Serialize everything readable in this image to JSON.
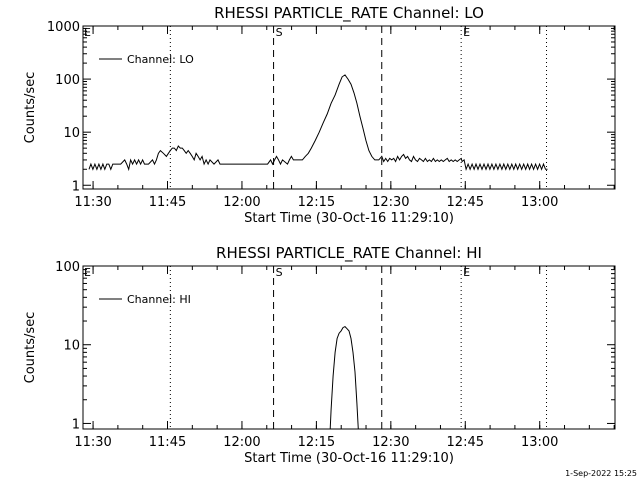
{
  "footer": {
    "timestamp": "1-Sep-2022 15:25"
  },
  "chart_data": [
    {
      "type": "line",
      "title": "RHESSI PARTICLE_RATE Channel: LO",
      "xlabel": "Start Time (30-Oct-16 11:29:10)",
      "ylabel": "Counts/sec",
      "yscale": "log",
      "xlim": [
        -1.2,
        106
      ],
      "ylim": [
        0.85,
        1000
      ],
      "x_tick_values": [
        0.83,
        15.83,
        30.83,
        45.83,
        60.83,
        75.83,
        90.83
      ],
      "x_tick_labels": [
        "11:30",
        "11:45",
        "12:00",
        "12:15",
        "12:30",
        "12:45",
        "13:00"
      ],
      "y_tick_values": [
        1,
        10,
        100,
        1000
      ],
      "y_tick_labels": [
        "1",
        "10",
        "100",
        "1000"
      ],
      "legend": {
        "label": "Channel: LO",
        "position": "top-left"
      },
      "markers": [
        {
          "x": 16.4,
          "style": "dotted",
          "label": ""
        },
        {
          "x": 37.2,
          "style": "dashed",
          "label": "S"
        },
        {
          "x": 59.0,
          "style": "dashed",
          "label": ""
        },
        {
          "x": 75.0,
          "style": "dotted",
          "label": "E"
        },
        {
          "x": 92.2,
          "style": "dotted",
          "label": ""
        }
      ],
      "edge_labels": [
        "E"
      ],
      "series": [
        {
          "name": "Channel: LO",
          "x": [
            0,
            0.4,
            0.8,
            1.2,
            1.6,
            2.0,
            2.4,
            2.8,
            3.2,
            3.6,
            4.0,
            4.4,
            4.8,
            5.2,
            5.6,
            6.4,
            7.2,
            7.6,
            8.0,
            8.4,
            8.8,
            9.2,
            9.6,
            10.0,
            10.4,
            10.8,
            11.2,
            12.0,
            12.8,
            13.2,
            13.6,
            14.0,
            14.4,
            15.0,
            15.6,
            16.0,
            16.4,
            16.8,
            17.2,
            17.6,
            18.0,
            18.4,
            18.8,
            19.2,
            19.6,
            20.0,
            20.4,
            20.8,
            21.2,
            21.6,
            22.0,
            22.4,
            22.8,
            23.2,
            23.6,
            24.0,
            24.4,
            25.2,
            26.0,
            26.4,
            26.8,
            27.2,
            28.0,
            28.8,
            29.6,
            30.4,
            31.2,
            32.0,
            32.8,
            33.6,
            34.4,
            35.2,
            36.0,
            36.6,
            37.0,
            37.4,
            37.8,
            38.2,
            38.6,
            39.0,
            40.0,
            40.4,
            40.8,
            41.2,
            42.0,
            43.0,
            43.6,
            44.2,
            44.8,
            45.6,
            46.4,
            47.2,
            48.0,
            48.8,
            49.6,
            50.4,
            51.0,
            51.6,
            52.2,
            52.8,
            53.4,
            54.0,
            54.6,
            55.2,
            55.8,
            56.4,
            57.0,
            57.6,
            58.4,
            59.0,
            59.4,
            59.8,
            60.2,
            60.6,
            61.0,
            61.4,
            61.8,
            62.2,
            62.6,
            63.0,
            63.4,
            63.8,
            64.2,
            64.6,
            65.0,
            65.4,
            65.8,
            66.2,
            66.6,
            67.0,
            67.4,
            67.8,
            68.2,
            68.6,
            69.0,
            69.4,
            69.8,
            70.2,
            70.6,
            71.0,
            71.4,
            71.8,
            72.2,
            72.6,
            73.0,
            73.4,
            73.8,
            74.2,
            74.6,
            75.0,
            75.2,
            75.6,
            76.0,
            76.4,
            76.8,
            77.2,
            77.6,
            78.0,
            78.4,
            78.8,
            79.2,
            79.6,
            80.0,
            80.4,
            80.8,
            81.2,
            81.6,
            82.0,
            82.4,
            82.8,
            83.2,
            83.6,
            84.0,
            84.4,
            84.8,
            85.2,
            85.6,
            86.0,
            86.4,
            86.8,
            87.2,
            87.6,
            88.0,
            88.4,
            88.8,
            89.2,
            89.6,
            90.0,
            90.4,
            90.8,
            91.2,
            91.6,
            92.0,
            92.4
          ],
          "values": [
            2.0,
            2.5,
            2.0,
            2.5,
            2.0,
            2.5,
            2.0,
            2.5,
            2.0,
            2.5,
            2.5,
            2.0,
            2.5,
            2.5,
            2.5,
            2.5,
            3.0,
            2.5,
            2.0,
            3.0,
            2.5,
            3.0,
            2.5,
            3.0,
            2.5,
            3.0,
            2.5,
            2.5,
            3.0,
            2.5,
            3.0,
            4.0,
            4.5,
            4.0,
            3.5,
            4.0,
            4.5,
            5.0,
            5.0,
            4.5,
            5.5,
            5.0,
            5.0,
            4.5,
            4.0,
            4.5,
            4.0,
            3.5,
            3.0,
            4.0,
            3.5,
            3.0,
            3.5,
            2.5,
            3.0,
            2.5,
            3.0,
            2.5,
            3.0,
            2.5,
            2.5,
            2.5,
            2.5,
            2.5,
            2.5,
            2.5,
            2.5,
            2.5,
            2.5,
            2.5,
            2.5,
            2.5,
            2.5,
            3.0,
            2.5,
            3.0,
            3.5,
            3.0,
            2.5,
            3.0,
            2.5,
            3.0,
            3.5,
            3.0,
            3.0,
            3.0,
            3.5,
            4.0,
            5.0,
            7.0,
            10.0,
            15.0,
            22.0,
            35.0,
            50.0,
            80.0,
            110.0,
            120.0,
            100.0,
            80.0,
            55.0,
            35.0,
            20.0,
            12.0,
            7.0,
            4.5,
            3.5,
            3.0,
            3.0,
            3.5,
            2.8,
            3.2,
            2.8,
            3.2,
            3.0,
            3.2,
            2.8,
            3.5,
            3.0,
            3.5,
            3.8,
            3.2,
            3.5,
            3.0,
            2.8,
            3.5,
            3.0,
            2.8,
            3.2,
            3.0,
            2.8,
            3.2,
            2.8,
            3.0,
            2.8,
            3.2,
            2.8,
            3.0,
            2.8,
            3.0,
            2.8,
            3.0,
            3.2,
            2.8,
            3.0,
            2.8,
            3.0,
            2.8,
            3.0,
            3.2,
            2.8,
            3.0,
            2.0,
            2.5,
            2.0,
            2.5,
            2.0,
            2.5,
            2.0,
            2.5,
            2.0,
            2.5,
            2.0,
            2.5,
            2.0,
            2.5,
            2.0,
            2.5,
            2.0,
            2.5,
            2.0,
            2.5,
            2.0,
            2.5,
            2.0,
            2.5,
            2.0,
            2.5,
            2.0,
            2.5,
            2.0,
            2.5,
            2.0,
            2.5,
            2.0,
            2.5,
            2.0,
            2.5,
            2.0,
            2.5,
            2.0,
            2.5,
            2.0,
            2.0
          ]
        }
      ]
    },
    {
      "type": "line",
      "title": "RHESSI PARTICLE_RATE Channel: HI",
      "xlabel": "Start Time (30-Oct-16 11:29:10)",
      "ylabel": "Counts/sec",
      "yscale": "log",
      "xlim": [
        -1.2,
        106
      ],
      "ylim": [
        0.85,
        100
      ],
      "x_tick_values": [
        0.83,
        15.83,
        30.83,
        45.83,
        60.83,
        75.83,
        90.83
      ],
      "x_tick_labels": [
        "11:30",
        "11:45",
        "12:00",
        "12:15",
        "12:30",
        "12:45",
        "13:00"
      ],
      "y_tick_values": [
        1,
        10,
        100
      ],
      "y_tick_labels": [
        "1",
        "10",
        "100"
      ],
      "legend": {
        "label": "Channel: HI",
        "position": "top-left"
      },
      "markers": [
        {
          "x": 16.4,
          "style": "dotted",
          "label": ""
        },
        {
          "x": 37.2,
          "style": "dashed",
          "label": "S"
        },
        {
          "x": 59.0,
          "style": "dashed",
          "label": ""
        },
        {
          "x": 75.0,
          "style": "dotted",
          "label": "E"
        },
        {
          "x": 92.2,
          "style": "dotted",
          "label": ""
        }
      ],
      "edge_labels": [
        "E"
      ],
      "series": [
        {
          "name": "Channel: HI",
          "x": [
            48.6,
            48.8,
            49.2,
            49.6,
            50.0,
            50.4,
            50.8,
            51.2,
            51.6,
            52.0,
            52.4,
            52.8,
            53.2,
            53.6,
            54.0,
            54.3
          ],
          "values": [
            0.8,
            1.5,
            4.0,
            8.0,
            12.0,
            14.0,
            15.0,
            16.5,
            17.0,
            16.0,
            15.0,
            12.0,
            8.0,
            4.5,
            1.8,
            0.8
          ]
        }
      ]
    }
  ]
}
